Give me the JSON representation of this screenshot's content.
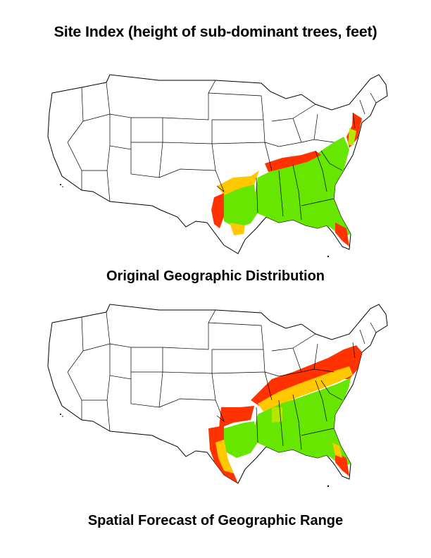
{
  "title": "Site Index (height of sub-dominant trees, feet)",
  "panels": [
    {
      "caption": "Original Geographic Distribution"
    },
    {
      "caption": "Spatial Forecast of Geographic Range"
    }
  ],
  "colors": {
    "high": "#66e600",
    "mid": "#b4e600",
    "low_mid": "#ffc800",
    "low": "#ff3200",
    "outline": "#000000"
  }
}
